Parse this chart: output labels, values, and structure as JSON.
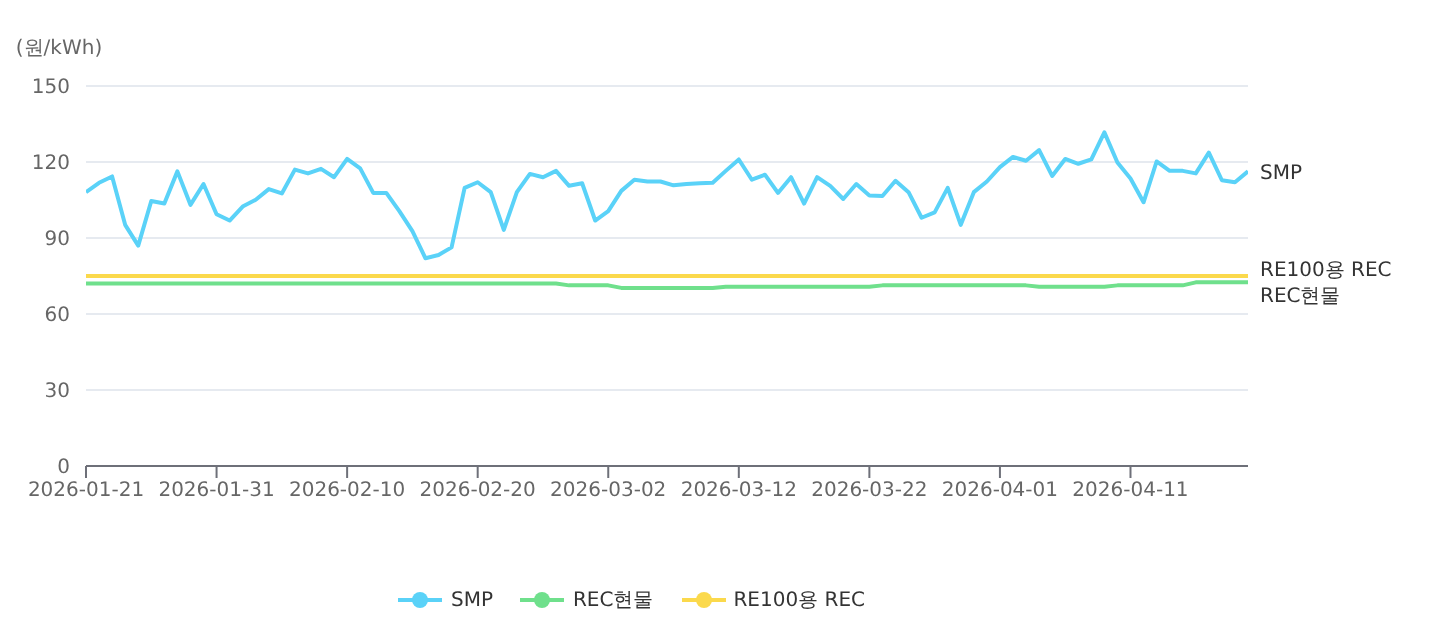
{
  "chart_data": {
    "type": "line",
    "ylabel": "(원/kWh)",
    "x": [
      "2026-01-21",
      "2026-01-22",
      "2026-01-23",
      "2026-01-24",
      "2026-01-25",
      "2026-01-26",
      "2026-01-27",
      "2026-01-28",
      "2026-01-29",
      "2026-01-30",
      "2026-01-31",
      "2026-02-01",
      "2026-02-02",
      "2026-02-03",
      "2026-02-04",
      "2026-02-05",
      "2026-02-06",
      "2026-02-07",
      "2026-02-08",
      "2026-02-09",
      "2026-02-10",
      "2026-02-11",
      "2026-02-12",
      "2026-02-13",
      "2026-02-14",
      "2026-02-15",
      "2026-02-16",
      "2026-02-17",
      "2026-02-18",
      "2026-02-19",
      "2026-02-20",
      "2026-02-21",
      "2026-02-22",
      "2026-02-23",
      "2026-02-24",
      "2026-02-25",
      "2026-02-26",
      "2026-02-27",
      "2026-02-28",
      "2026-03-01",
      "2026-03-02",
      "2026-03-03",
      "2026-03-04",
      "2026-03-05",
      "2026-03-06",
      "2026-03-07",
      "2026-03-08",
      "2026-03-09",
      "2026-03-10",
      "2026-03-11",
      "2026-03-12",
      "2026-03-13",
      "2026-03-14",
      "2026-03-15",
      "2026-03-16",
      "2026-03-17",
      "2026-03-18",
      "2026-03-19",
      "2026-03-20",
      "2026-03-21",
      "2026-03-22",
      "2026-03-23",
      "2026-03-24",
      "2026-03-25",
      "2026-03-26",
      "2026-03-27",
      "2026-03-28",
      "2026-03-29",
      "2026-03-30",
      "2026-03-31",
      "2026-04-01",
      "2026-04-02",
      "2026-04-03",
      "2026-04-04",
      "2026-04-05",
      "2026-04-06",
      "2026-04-07",
      "2026-04-08",
      "2026-04-09",
      "2026-04-10",
      "2026-04-11",
      "2026-04-12",
      "2026-04-13",
      "2026-04-14",
      "2026-04-15",
      "2026-04-16",
      "2026-04-17",
      "2026-04-18",
      "2026-04-19",
      "2026-04-20"
    ],
    "xlim": [
      "2026-01-21",
      "2026-04-20"
    ],
    "xticks": [
      "2026-01-21",
      "2026-01-31",
      "2026-02-10",
      "2026-02-20",
      "2026-03-02",
      "2026-03-12",
      "2026-03-22",
      "2026-04-01",
      "2026-04-11"
    ],
    "ylim": [
      0,
      150
    ],
    "yticks": [
      0,
      30,
      60,
      90,
      120,
      150
    ],
    "grid": "y",
    "legend": "bottom",
    "marker": "none",
    "line_style": "solid",
    "series": [
      {
        "name": "SMP",
        "color": "#5ad2f8",
        "values": [
          108.1,
          111.8,
          114.3,
          95.2,
          87,
          104.6,
          103.6,
          116.3,
          103.1,
          111.3,
          99.4,
          96.9,
          102.4,
          105.1,
          109.3,
          107.6,
          117,
          115.5,
          117.3,
          114,
          121.2,
          117.5,
          107.8,
          107.8,
          100.6,
          92.7,
          82,
          83.3,
          86.3,
          109.8,
          112,
          108.1,
          93.2,
          108.1,
          115.3,
          114,
          116.5,
          110.6,
          111.6,
          96.9,
          100.6,
          108.6,
          113,
          112.3,
          112.3,
          110.8,
          111.3,
          111.6,
          111.8,
          116.5,
          121,
          113,
          115,
          107.8,
          114,
          103.6,
          114,
          110.6,
          105.4,
          111.3,
          106.8,
          106.6,
          112.6,
          108.1,
          98,
          100.1,
          109.8,
          95.2,
          108.1,
          112.3,
          118,
          122,
          120.5,
          124.7,
          114.5,
          121.2,
          119.3,
          121,
          131.7,
          119.8,
          113.5,
          104.1,
          120.2,
          116.5,
          116.5,
          115.5,
          123.7,
          112.8,
          112,
          116.3
        ]
      },
      {
        "name": "REC현물",
        "color": "#6fe08c",
        "values": [
          72,
          72,
          72,
          72,
          72,
          72,
          72,
          72,
          72,
          72,
          72,
          72,
          72,
          72,
          72,
          72,
          72,
          72,
          72,
          72,
          72,
          72,
          72,
          72,
          72,
          72,
          72,
          72,
          72,
          72,
          72,
          72,
          72,
          72,
          72,
          72,
          72,
          71.3,
          71.3,
          71.3,
          71.3,
          70.3,
          70.3,
          70.3,
          70.3,
          70.3,
          70.3,
          70.3,
          70.3,
          70.8,
          70.8,
          70.8,
          70.8,
          70.8,
          70.8,
          70.8,
          70.8,
          70.8,
          70.8,
          70.8,
          70.8,
          71.3,
          71.3,
          71.3,
          71.3,
          71.3,
          71.3,
          71.3,
          71.3,
          71.3,
          71.3,
          71.3,
          71.3,
          70.8,
          70.8,
          70.8,
          70.8,
          70.8,
          70.8,
          71.3,
          71.3,
          71.3,
          71.3,
          71.3,
          71.3,
          72.5,
          72.5,
          72.5,
          72.5,
          72.5
        ]
      },
      {
        "name": "RE100용 REC",
        "color": "#fbd94c",
        "values": [
          75,
          75,
          75,
          75,
          75,
          75,
          75,
          75,
          75,
          75,
          75,
          75,
          75,
          75,
          75,
          75,
          75,
          75,
          75,
          75,
          75,
          75,
          75,
          75,
          75,
          75,
          75,
          75,
          75,
          75,
          75,
          75,
          75,
          75,
          75,
          75,
          75,
          75,
          75,
          75,
          75,
          75,
          75,
          75,
          75,
          75,
          75,
          75,
          75,
          75,
          75,
          75,
          75,
          75,
          75,
          75,
          75,
          75,
          75,
          75,
          75,
          75,
          75,
          75,
          75,
          75,
          75,
          75,
          75,
          75,
          75,
          75,
          75,
          75,
          75,
          75,
          75,
          75,
          75,
          75,
          75,
          75,
          75,
          75,
          75,
          75,
          75,
          75,
          75,
          75
        ]
      }
    ]
  }
}
